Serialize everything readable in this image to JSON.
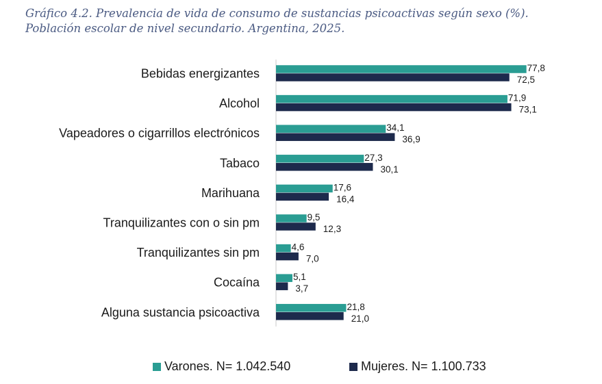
{
  "title": {
    "line1": "Gráfico 4.2. Prevalencia de vida de consumo de sustancias psicoactivas según sexo (%).",
    "line2": "Población escolar de nivel secundario. Argentina, 2025."
  },
  "colors": {
    "varones": "#2a9d93",
    "mujeres": "#1d2a4c",
    "axis": "#c8c8c8"
  },
  "chart_data": {
    "type": "bar",
    "orientation": "horizontal",
    "categories": [
      "Bebidas energizantes",
      "Alcohol",
      "Vapeadores o cigarrillos electrónicos",
      "Tabaco",
      "Marihuana",
      "Tranquilizantes con o sin pm",
      "Tranquilizantes  sin pm",
      "Cocaína",
      "Alguna sustancia psicoactiva"
    ],
    "series": [
      {
        "name": "Varones. N=  1.042.540",
        "values": [
          77.8,
          71.9,
          34.1,
          27.3,
          17.6,
          9.5,
          4.6,
          5.1,
          21.8
        ],
        "labels": [
          "77,8",
          "71,9",
          "34,1",
          "27,3",
          "17,6",
          "9,5",
          "4,6",
          "5,1",
          "21,8"
        ]
      },
      {
        "name": "Mujeres. N= 1.100.733",
        "values": [
          72.5,
          73.1,
          36.9,
          30.1,
          16.4,
          12.3,
          7.0,
          3.7,
          21.0
        ],
        "labels": [
          "72,5",
          "73,1",
          "36,9",
          "30,1",
          "16,4",
          "12,3",
          "7,0",
          "3,7",
          "21,0"
        ]
      }
    ],
    "xlim": [
      0,
      100
    ],
    "grid": false,
    "legend_position": "bottom"
  }
}
